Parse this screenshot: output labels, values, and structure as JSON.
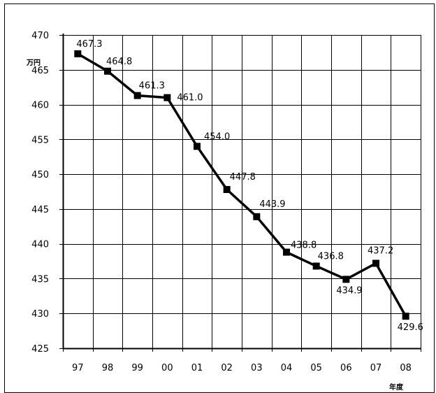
{
  "chart_data": {
    "type": "line",
    "x": [
      "97",
      "98",
      "99",
      "00",
      "01",
      "02",
      "03",
      "04",
      "05",
      "06",
      "07",
      "08"
    ],
    "series": [
      {
        "values": [
          467.3,
          464.8,
          461.3,
          461.0,
          454.0,
          447.8,
          443.9,
          438.8,
          436.8,
          434.9,
          437.2,
          429.6
        ],
        "value_labels": [
          "467.3",
          "464.8",
          "461.3",
          "461.0",
          "454.0",
          "447.8",
          "443.9",
          "438.8",
          "436.8",
          "434.9",
          "437.2",
          "429.6"
        ]
      }
    ],
    "ylabel": "万円",
    "xlabel": "年度",
    "ylim": [
      425,
      470
    ],
    "yticks": [
      "425",
      "430",
      "435",
      "440",
      "445",
      "450",
      "455",
      "460",
      "465",
      "470"
    ],
    "grid": true,
    "marker": "square",
    "line_color": "#000000"
  }
}
